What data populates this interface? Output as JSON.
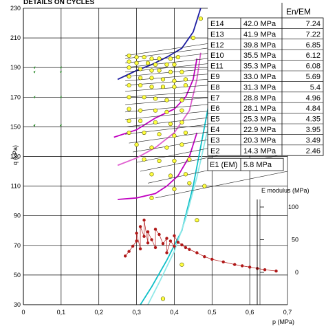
{
  "chart_data": {
    "type": "scatter",
    "title": "DETAILS ON CYCLES",
    "xlabel": "p (MPa)",
    "ylabel": "q (kPa)",
    "xlim": [
      0,
      0.7
    ],
    "ylim": [
      30,
      230
    ],
    "x_ticks": [
      "0",
      "0,1",
      "0,2",
      "0,3",
      "0,4",
      "0,5",
      "0,6",
      "0,7"
    ],
    "y_ticks": [
      "30",
      "50",
      "70",
      "90",
      "110",
      "130",
      "150",
      "170",
      "190",
      "210",
      "230"
    ],
    "secondary_axis": {
      "label": "E modulus (MPa)",
      "ticks": [
        "100",
        "50",
        "0"
      ]
    },
    "table": {
      "header": "En/EM",
      "rows": [
        {
          "name": "E14",
          "value": "42.0 MPa",
          "ratio": "7.24"
        },
        {
          "name": "E13",
          "value": "41.9 MPa",
          "ratio": "7.22"
        },
        {
          "name": "E12",
          "value": "39.8 MPa",
          "ratio": "6.85"
        },
        {
          "name": "E10",
          "value": "35.5 MPa",
          "ratio": "6.12"
        },
        {
          "name": "E11",
          "value": "35.3 MPa",
          "ratio": "6.08"
        },
        {
          "name": "E9",
          "value": "33.0 MPa",
          "ratio": "5.69"
        },
        {
          "name": "E8",
          "value": "31.3 MPa",
          "ratio": "5.4"
        },
        {
          "name": "E7",
          "value": "28.8 MPa",
          "ratio": "4.96"
        },
        {
          "name": "E6",
          "value": "28.1 MPa",
          "ratio": "4.84"
        },
        {
          "name": "E5",
          "value": "25.3 MPa",
          "ratio": "4.35"
        },
        {
          "name": "E4",
          "value": "22.9 MPa",
          "ratio": "3.95"
        },
        {
          "name": "E3",
          "value": "20.3 MPa",
          "ratio": "3.49"
        },
        {
          "name": "E2",
          "value": "14.3 MPa",
          "ratio": "2.46"
        }
      ],
      "base": {
        "name": "E1 (EM)",
        "value": "5.8 MPa"
      }
    },
    "yield_curves": [
      {
        "color": "#1a1aa0",
        "points": [
          [
            0.25,
            182
          ],
          [
            0.3,
            188
          ],
          [
            0.34,
            192
          ],
          [
            0.38,
            197
          ],
          [
            0.42,
            203
          ],
          [
            0.45,
            214
          ],
          [
            0.47,
            230
          ]
        ]
      },
      {
        "color": "#c000c0",
        "points": [
          [
            0.24,
            143
          ],
          [
            0.3,
            148
          ],
          [
            0.35,
            156
          ],
          [
            0.4,
            162
          ],
          [
            0.43,
            170
          ],
          [
            0.45,
            182
          ],
          [
            0.46,
            196
          ]
        ]
      },
      {
        "color": "#e060d0",
        "points": [
          [
            0.25,
            124
          ],
          [
            0.3,
            129
          ],
          [
            0.35,
            136
          ],
          [
            0.4,
            146
          ],
          [
            0.44,
            161
          ],
          [
            0.46,
            182
          ],
          [
            0.47,
            200
          ]
        ]
      },
      {
        "color": "#c000c0",
        "points": [
          [
            0.25,
            101
          ],
          [
            0.3,
            102
          ],
          [
            0.35,
            105
          ],
          [
            0.38,
            110
          ],
          [
            0.41,
            117
          ],
          [
            0.44,
            130
          ],
          [
            0.46,
            146
          ]
        ]
      },
      {
        "color": "#10c0c8",
        "points": [
          [
            0.31,
            30
          ],
          [
            0.34,
            42
          ],
          [
            0.38,
            60
          ],
          [
            0.42,
            80
          ],
          [
            0.45,
            110
          ],
          [
            0.48,
            150
          ],
          [
            0.51,
            190
          ],
          [
            0.53,
            222
          ],
          [
            0.54,
            230
          ]
        ]
      },
      {
        "color": "#90e8e8",
        "points": [
          [
            0.33,
            30
          ],
          [
            0.36,
            45
          ],
          [
            0.4,
            66
          ],
          [
            0.43,
            88
          ],
          [
            0.46,
            116
          ],
          [
            0.49,
            150
          ],
          [
            0.52,
            190
          ],
          [
            0.54,
            222
          ]
        ]
      }
    ],
    "cycle_points": [
      [
        0.28,
        198
      ],
      [
        0.3,
        197
      ],
      [
        0.32,
        197
      ],
      [
        0.34,
        196
      ],
      [
        0.36,
        196
      ],
      [
        0.39,
        196
      ],
      [
        0.41,
        197
      ],
      [
        0.28,
        194
      ],
      [
        0.3,
        193
      ],
      [
        0.33,
        193
      ],
      [
        0.35,
        192
      ],
      [
        0.38,
        192
      ],
      [
        0.4,
        192
      ],
      [
        0.28,
        190
      ],
      [
        0.31,
        189
      ],
      [
        0.34,
        188
      ],
      [
        0.36,
        188
      ],
      [
        0.39,
        187
      ],
      [
        0.42,
        187
      ],
      [
        0.28,
        184
      ],
      [
        0.31,
        183
      ],
      [
        0.34,
        183
      ],
      [
        0.37,
        182
      ],
      [
        0.4,
        181
      ],
      [
        0.43,
        182
      ],
      [
        0.28,
        178
      ],
      [
        0.31,
        178
      ],
      [
        0.34,
        177
      ],
      [
        0.37,
        177
      ],
      [
        0.4,
        177
      ],
      [
        0.43,
        178
      ],
      [
        0.28,
        170
      ],
      [
        0.32,
        170
      ],
      [
        0.35,
        169
      ],
      [
        0.38,
        168
      ],
      [
        0.42,
        168
      ],
      [
        0.28,
        162
      ],
      [
        0.31,
        161
      ],
      [
        0.35,
        161
      ],
      [
        0.38,
        160
      ],
      [
        0.42,
        161
      ],
      [
        0.28,
        154
      ],
      [
        0.31,
        154
      ],
      [
        0.35,
        153
      ],
      [
        0.39,
        152
      ],
      [
        0.42,
        153
      ],
      [
        0.28,
        146
      ],
      [
        0.32,
        146
      ],
      [
        0.36,
        145
      ],
      [
        0.4,
        144
      ],
      [
        0.43,
        146
      ],
      [
        0.3,
        138
      ],
      [
        0.34,
        136
      ],
      [
        0.38,
        136
      ],
      [
        0.42,
        138
      ],
      [
        0.32,
        128
      ],
      [
        0.36,
        127
      ],
      [
        0.4,
        127
      ],
      [
        0.44,
        128
      ],
      [
        0.34,
        118
      ],
      [
        0.39,
        117
      ],
      [
        0.43,
        118
      ],
      [
        0.34,
        102
      ],
      [
        0.4,
        108
      ],
      [
        0.44,
        112
      ],
      [
        0.48,
        110
      ],
      [
        0.47,
        223
      ],
      [
        0.45,
        210
      ],
      [
        0.46,
        87
      ],
      [
        0.42,
        57
      ],
      [
        0.37,
        34
      ]
    ],
    "cycle_lines": [
      [
        [
          0.27,
          198
        ],
        [
          0.7,
          214
        ]
      ],
      [
        [
          0.27,
          196
        ],
        [
          0.7,
          210
        ]
      ],
      [
        [
          0.27,
          193
        ],
        [
          0.7,
          206
        ]
      ],
      [
        [
          0.27,
          190
        ],
        [
          0.7,
          202
        ]
      ],
      [
        [
          0.27,
          187
        ],
        [
          0.7,
          198
        ]
      ],
      [
        [
          0.27,
          184
        ],
        [
          0.7,
          194
        ]
      ],
      [
        [
          0.27,
          181
        ],
        [
          0.7,
          190
        ]
      ],
      [
        [
          0.27,
          178
        ],
        [
          0.7,
          186
        ]
      ],
      [
        [
          0.27,
          174
        ],
        [
          0.7,
          182
        ]
      ],
      [
        [
          0.27,
          170
        ],
        [
          0.7,
          178
        ]
      ],
      [
        [
          0.27,
          165
        ],
        [
          0.7,
          174
        ]
      ],
      [
        [
          0.27,
          160
        ],
        [
          0.7,
          170
        ]
      ],
      [
        [
          0.27,
          155
        ],
        [
          0.7,
          166
        ]
      ],
      [
        [
          0.27,
          150
        ],
        [
          0.7,
          162
        ]
      ],
      [
        [
          0.27,
          145
        ],
        [
          0.7,
          158
        ]
      ],
      [
        [
          0.28,
          139
        ],
        [
          0.7,
          154
        ]
      ],
      [
        [
          0.29,
          133
        ],
        [
          0.7,
          150
        ]
      ],
      [
        [
          0.3,
          126
        ],
        [
          0.7,
          146
        ]
      ],
      [
        [
          0.31,
          120
        ],
        [
          0.7,
          140
        ]
      ],
      [
        [
          0.33,
          112
        ],
        [
          0.7,
          132
        ]
      ],
      [
        [
          0.35,
          102
        ],
        [
          0.7,
          120
        ]
      ]
    ],
    "green_marks": [
      [
        0.03,
        190
      ],
      [
        0.03,
        187
      ],
      [
        0.03,
        170
      ],
      [
        0.03,
        151
      ],
      [
        0.1,
        190
      ],
      [
        0.1,
        187
      ],
      [
        0.1,
        170
      ],
      [
        0.1,
        151
      ]
    ],
    "e_modulus_cycles": {
      "x": [
        0.27,
        0.28,
        0.29,
        0.3,
        0.3,
        0.31,
        0.31,
        0.32,
        0.32,
        0.33,
        0.33,
        0.34,
        0.35,
        0.35,
        0.36,
        0.37,
        0.38,
        0.38,
        0.39,
        0.4,
        0.4,
        0.41,
        0.42,
        0.43,
        0.44,
        0.46,
        0.48,
        0.5,
        0.53,
        0.56,
        0.58,
        0.6,
        0.62,
        0.64,
        0.67
      ],
      "e": [
        25,
        32,
        40,
        48,
        60,
        36,
        70,
        55,
        80,
        45,
        62,
        50,
        38,
        66,
        58,
        44,
        52,
        30,
        48,
        40,
        56,
        46,
        42,
        38,
        35,
        30,
        24,
        20,
        16,
        12,
        10,
        8,
        6,
        4,
        2
      ]
    }
  }
}
